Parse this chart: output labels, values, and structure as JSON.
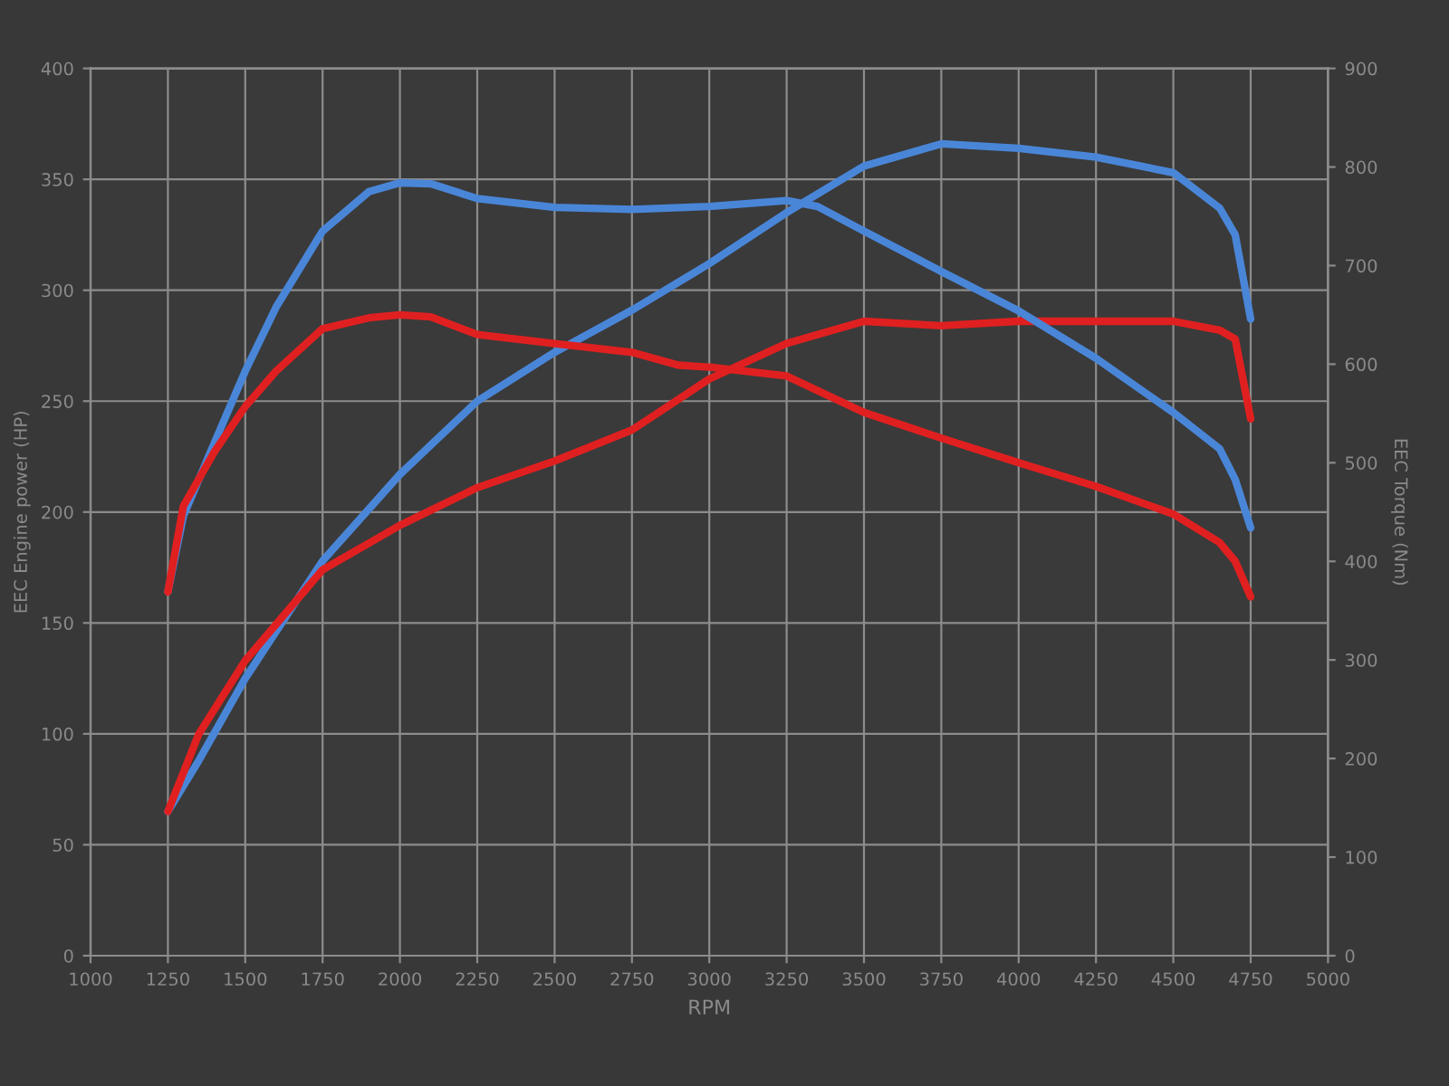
{
  "chart_data": {
    "type": "line",
    "xlabel": "RPM",
    "ylabel": "EEC Engine power (HP)",
    "y2label": "EEC Torque (Nm)",
    "xlim": [
      1000,
      5000
    ],
    "xticks": [
      1000,
      1250,
      1500,
      1750,
      2000,
      2250,
      2500,
      2750,
      3000,
      3250,
      3500,
      3750,
      4000,
      4250,
      4500,
      4750,
      5000
    ],
    "ylim": [
      0,
      400
    ],
    "yticks": [
      0,
      50,
      100,
      150,
      200,
      250,
      300,
      350,
      400
    ],
    "y2lim": [
      0,
      900
    ],
    "y2ticks": [
      0,
      100,
      200,
      300,
      400,
      500,
      600,
      700,
      800,
      900
    ],
    "grid": true,
    "line_style": "solid",
    "marker": "none",
    "series": [
      {
        "color": "#4a86d8",
        "axis": "y2",
        "x": [
          1250,
          1300,
          1400,
          1500,
          1600,
          1750,
          1900,
          2000,
          2100,
          2250,
          2500,
          2750,
          3000,
          3250,
          3350,
          3500,
          3750,
          4000,
          4250,
          4500,
          4650,
          4700,
          4750
        ],
        "values": [
          369,
          446,
          520,
          593,
          658,
          735,
          775,
          784,
          783,
          768,
          759,
          757,
          760,
          766,
          760,
          735,
          694,
          654,
          606,
          551,
          514,
          483,
          434
        ]
      },
      {
        "color": "#e02020",
        "axis": "y2",
        "x": [
          1250,
          1300,
          1400,
          1500,
          1600,
          1750,
          1900,
          2000,
          2100,
          2250,
          2500,
          2750,
          2900,
          3000,
          3250,
          3500,
          3750,
          4000,
          4250,
          4500,
          4650,
          4700,
          4750
        ],
        "values": [
          369,
          456,
          511,
          557,
          593,
          636,
          647,
          650,
          648,
          630,
          621,
          612,
          599,
          597,
          588,
          551,
          525,
          500,
          476,
          448,
          419,
          400,
          364
        ]
      },
      {
        "color": "#4a86d8",
        "x": [
          1250,
          1350,
          1500,
          1750,
          2000,
          2250,
          2500,
          2750,
          3000,
          3250,
          3500,
          3750,
          4000,
          4250,
          4500,
          4650,
          4700,
          4750
        ],
        "values": [
          65,
          88,
          125,
          178,
          217,
          250,
          272,
          291,
          312,
          335,
          356,
          366,
          364,
          360,
          353,
          337,
          325,
          287
        ]
      },
      {
        "color": "#e02020",
        "x": [
          1250,
          1350,
          1500,
          1750,
          2000,
          2250,
          2500,
          2750,
          3000,
          3250,
          3500,
          3750,
          4000,
          4250,
          4500,
          4650,
          4700,
          4750
        ],
        "values": [
          65,
          100,
          133,
          174,
          194,
          211,
          223,
          237,
          260,
          276,
          286,
          284,
          286,
          286,
          286,
          282,
          278,
          242
        ]
      }
    ]
  }
}
